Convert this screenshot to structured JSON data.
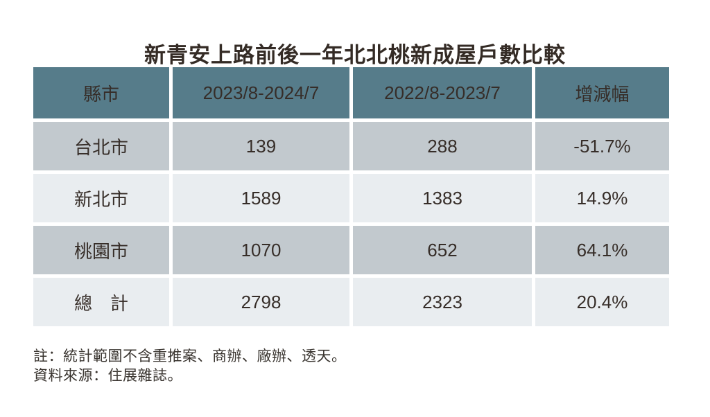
{
  "title": "新青安上路前後一年北北桃新成屋戶數比較",
  "table": {
    "columns": [
      "縣市",
      "2023/8-2024/7",
      "2022/8-2023/7",
      "增減幅"
    ],
    "rows": [
      {
        "city": "台北市",
        "period_new": "139",
        "period_old": "288",
        "change": "-51.7%"
      },
      {
        "city": "新北市",
        "period_new": "1589",
        "period_old": "1383",
        "change": "14.9%"
      },
      {
        "city": "桃園市",
        "period_new": "1070",
        "period_old": "652",
        "change": "64.1%"
      },
      {
        "city": "總　計",
        "period_new": "2798",
        "period_old": "2323",
        "change": "20.4%"
      }
    ]
  },
  "notes": {
    "line1": "註：統計範圍不含重推案、商辦、廠辦、透天。",
    "line2": "資料來源：住展雜誌。"
  },
  "colors": {
    "header_bg": "#567c8a",
    "row_odd_bg": "#c2c9ce",
    "row_even_bg": "#e9edf0",
    "text": "#362d28",
    "background": "#ffffff"
  },
  "chart_data": {
    "type": "table",
    "title": "新青安上路前後一年北北桃新成屋戶數比較",
    "columns": [
      "縣市",
      "2023/8-2024/7",
      "2022/8-2023/7",
      "增減幅"
    ],
    "rows": [
      [
        "台北市",
        139,
        288,
        "-51.7%"
      ],
      [
        "新北市",
        1589,
        1383,
        "14.9%"
      ],
      [
        "桃園市",
        1070,
        652,
        "64.1%"
      ],
      [
        "總計",
        2798,
        2323,
        "20.4%"
      ]
    ],
    "notes": [
      "註：統計範圍不含重推案、商辦、廠辦、透天。",
      "資料來源：住展雜誌。"
    ]
  }
}
